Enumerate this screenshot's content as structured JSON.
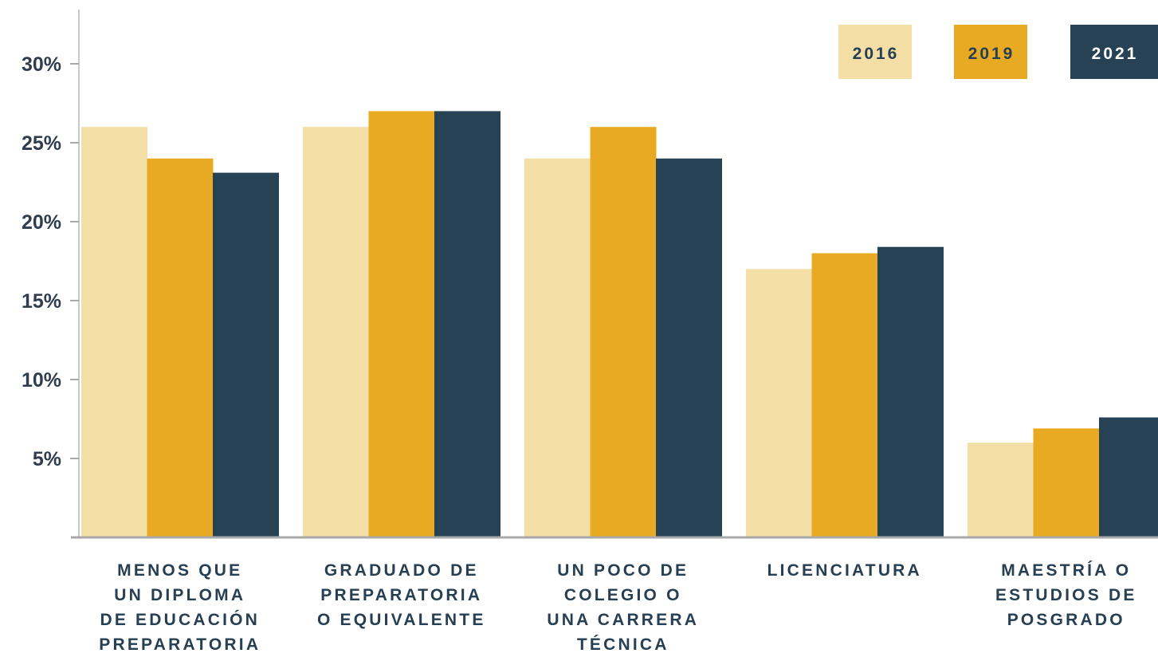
{
  "chart_data": {
    "type": "bar",
    "categories": [
      [
        "MENOS QUE",
        "UN DIPLOMA",
        "DE EDUCACIÓN",
        "PREPARATORIA"
      ],
      [
        "GRADUADO DE",
        "PREPARATORIA",
        "O EQUIVALENTE"
      ],
      [
        "UN POCO DE",
        "COLEGIO O",
        "UNA CARRERA",
        "TÉCNICA"
      ],
      [
        "LICENCIATURA"
      ],
      [
        "MAESTRÍA O",
        "ESTUDIOS DE",
        "POSGRADO"
      ]
    ],
    "series": [
      {
        "name": "2016",
        "color": "#f3dea6",
        "text_color": "#263f52",
        "values": [
          26,
          26,
          24,
          17,
          6
        ]
      },
      {
        "name": "2019",
        "color": "#e8aa22",
        "text_color": "#263f52",
        "values": [
          24,
          27,
          26,
          18,
          6.9
        ]
      },
      {
        "name": "2021",
        "color": "#264254",
        "text_color": "#ffffff",
        "values": [
          23.1,
          27,
          24,
          18.4,
          7.6
        ]
      }
    ],
    "yticks": [
      {
        "value": 5,
        "label": "5%"
      },
      {
        "value": 10,
        "label": "10%"
      },
      {
        "value": 15,
        "label": "15%"
      },
      {
        "value": 20,
        "label": "20%"
      },
      {
        "value": 25,
        "label": "25%"
      },
      {
        "value": 30,
        "label": "30%"
      }
    ],
    "ylim": [
      0,
      33
    ],
    "title": "",
    "xlabel": "",
    "ylabel": "",
    "grid": false,
    "legend": "top-right"
  }
}
